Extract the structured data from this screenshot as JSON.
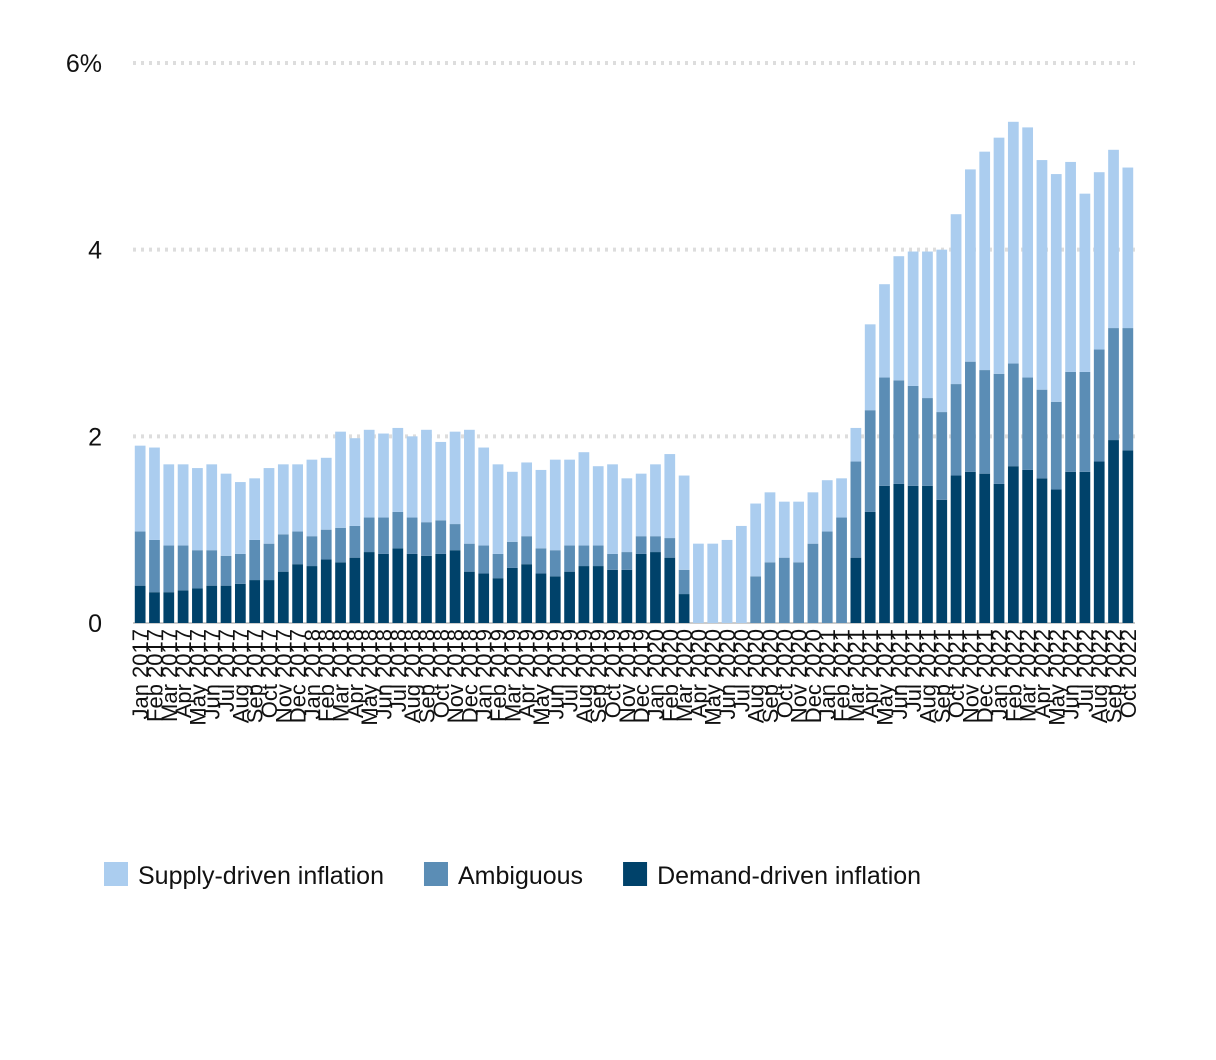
{
  "chart_data": {
    "type": "stacked_bar",
    "categories": [
      "Jan 2017",
      "Feb 2017",
      "Mar 2017",
      "Apr 2017",
      "May 2017",
      "Jun 2017",
      "Jul 2017",
      "Aug 2017",
      "Sep 2017",
      "Oct 2017",
      "Nov 2017",
      "Dec 2017",
      "Jan 2018",
      "Feb 2018",
      "Mar 2018",
      "Apr 2018",
      "May 2018",
      "Jun 2018",
      "Jul 2018",
      "Aug 2018",
      "Sep 2018",
      "Oct 2018",
      "Nov 2018",
      "Dec 2018",
      "Jan 2019",
      "Feb 2019",
      "Mar 2019",
      "Apr 2019",
      "May 2019",
      "Jun 2019",
      "Jul 2019",
      "Aug 2019",
      "Sep 2019",
      "Oct 2019",
      "Nov 2019",
      "Dec 2019",
      "Jan 2020",
      "Feb 2020",
      "Mar 2020",
      "Apr 2020",
      "May 2020",
      "Jun 2020",
      "Jul 2020",
      "Aug 2020",
      "Sep 2020",
      "Oct 2020",
      "Nov 2020",
      "Dec 2020",
      "Jan 2021",
      "Feb 2021",
      "Mar 2021",
      "Apr 2021",
      "May 2021",
      "Jun 2021",
      "Jul 2021",
      "Aug 2021",
      "Sep 2021",
      "Oct 2021",
      "Nov 2021",
      "Dec 2021",
      "Jan 2022",
      "Feb 2022",
      "Mar 2022",
      "Apr 2022",
      "May 2022",
      "Jun 2022",
      "Jul 2022",
      "Aug 2022",
      "Sep 2022",
      "Oct 2022"
    ],
    "series": [
      {
        "name": "Supply-driven inflation",
        "color": "#abcdef",
        "values": [
          0.92,
          0.99,
          0.87,
          0.87,
          0.88,
          0.92,
          0.88,
          0.77,
          0.66,
          0.81,
          0.75,
          0.72,
          0.82,
          0.77,
          1.03,
          0.94,
          0.94,
          0.9,
          0.9,
          0.87,
          0.99,
          0.84,
          0.99,
          1.22,
          1.05,
          0.96,
          0.75,
          0.79,
          0.84,
          0.97,
          0.92,
          1.0,
          0.85,
          0.96,
          0.79,
          0.67,
          0.77,
          0.9,
          1.01,
          0.85,
          0.85,
          0.89,
          1.04,
          0.78,
          0.75,
          0.6,
          0.65,
          0.55,
          0.55,
          0.42,
          0.36,
          0.92,
          1.0,
          1.33,
          1.44,
          1.57,
          1.74,
          1.82,
          2.06,
          2.34,
          2.53,
          2.59,
          2.68,
          2.46,
          2.44,
          2.25,
          1.91,
          1.9,
          1.91,
          1.72
        ]
      },
      {
        "name": "Ambiguous",
        "color": "#5b8db5",
        "values": [
          0.58,
          0.56,
          0.5,
          0.48,
          0.41,
          0.38,
          0.32,
          0.32,
          0.43,
          0.39,
          0.4,
          0.35,
          0.32,
          0.32,
          0.37,
          0.34,
          0.37,
          0.39,
          0.39,
          0.39,
          0.36,
          0.36,
          0.28,
          0.3,
          0.3,
          0.26,
          0.28,
          0.3,
          0.27,
          0.28,
          0.28,
          0.22,
          0.22,
          0.17,
          0.19,
          0.19,
          0.17,
          0.21,
          0.26,
          0,
          0,
          0,
          0,
          0.5,
          0.65,
          0.7,
          0.65,
          0.85,
          0.98,
          1.13,
          1.03,
          1.09,
          1.16,
          1.11,
          1.07,
          0.94,
          0.94,
          0.98,
          1.18,
          1.11,
          1.18,
          1.1,
          0.99,
          0.95,
          0.94,
          1.07,
          1.07,
          1.2,
          1.2,
          1.31
        ]
      },
      {
        "name": "Demand-driven inflation",
        "color": "#00426a",
        "values": [
          0.4,
          0.33,
          0.33,
          0.35,
          0.37,
          0.4,
          0.4,
          0.42,
          0.46,
          0.46,
          0.55,
          0.63,
          0.61,
          0.68,
          0.65,
          0.7,
          0.76,
          0.74,
          0.8,
          0.74,
          0.72,
          0.74,
          0.78,
          0.55,
          0.53,
          0.48,
          0.59,
          0.63,
          0.53,
          0.5,
          0.55,
          0.61,
          0.61,
          0.57,
          0.57,
          0.74,
          0.76,
          0.7,
          0.31,
          0,
          0,
          0,
          0,
          0,
          0,
          0,
          0,
          0,
          0,
          0,
          0.7,
          1.19,
          1.47,
          1.49,
          1.47,
          1.47,
          1.32,
          1.58,
          1.62,
          1.6,
          1.49,
          1.68,
          1.64,
          1.55,
          1.43,
          1.62,
          1.62,
          1.73,
          1.96,
          1.85
        ]
      }
    ],
    "ylim": [
      0,
      6
    ],
    "yticks": [
      0,
      2,
      4,
      {
        "value": 6,
        "label": "6%"
      }
    ],
    "grid": true,
    "legend": "bottom"
  }
}
